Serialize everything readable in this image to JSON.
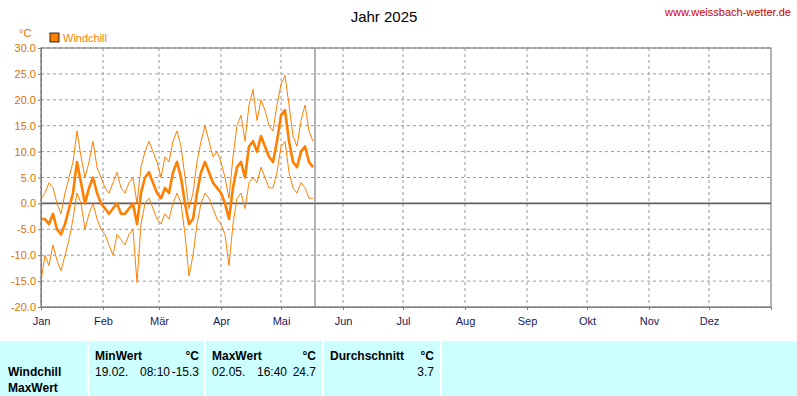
{
  "chart_data": {
    "type": "line",
    "title": "Jahr 2025",
    "source": "www.weissbach-wetter.de",
    "y_label": "°C",
    "x": [
      0,
      2,
      4,
      6,
      8,
      10,
      12,
      14,
      16,
      18,
      20,
      22,
      24,
      26,
      28,
      30,
      32,
      34,
      36,
      38,
      40,
      42,
      44,
      46,
      48,
      50,
      52,
      54,
      56,
      58,
      60,
      62,
      64,
      66,
      68,
      70,
      72,
      74,
      76,
      78,
      80,
      82,
      84,
      86,
      88,
      90,
      92,
      94,
      96,
      98,
      100,
      102,
      104,
      106,
      108,
      110,
      112,
      114,
      116,
      118,
      120,
      122,
      124,
      126,
      128,
      130,
      132,
      134,
      136
    ],
    "series": [
      {
        "name": "Windchill",
        "color": "#ff8000",
        "values": [
          -3,
          -3,
          -4,
          -2,
          -5,
          -6,
          -4,
          -1,
          2,
          8,
          4,
          0,
          3,
          5,
          2,
          0,
          -1,
          -2,
          -1,
          0,
          -2,
          -2,
          -1,
          0,
          -4,
          2,
          5,
          6,
          4,
          2,
          1,
          3,
          2,
          6,
          8,
          5,
          0,
          -4,
          -3,
          2,
          6,
          8,
          6,
          4,
          3,
          2,
          0,
          -3,
          3,
          7,
          8,
          5,
          11,
          12,
          10,
          13,
          11,
          9,
          8,
          12,
          17,
          18,
          12,
          8,
          7,
          10,
          11,
          8,
          7
        ]
      },
      {
        "color": "#ff8000",
        "values": [
          1,
          2,
          4,
          3,
          0,
          -2,
          2,
          5,
          8,
          14,
          9,
          5,
          8,
          12,
          7,
          5,
          3,
          2,
          4,
          6,
          3,
          2,
          4,
          5,
          0,
          7,
          10,
          12,
          10,
          8,
          5,
          9,
          8,
          12,
          14,
          11,
          5,
          -1,
          2,
          8,
          12,
          15,
          12,
          9,
          10,
          8,
          5,
          1,
          9,
          15,
          17,
          12,
          19,
          22,
          16,
          20,
          18,
          15,
          14,
          19,
          23,
          24.7,
          19,
          13,
          11,
          16,
          19,
          14,
          12
        ]
      },
      {
        "color": "#ff8000",
        "values": [
          -15,
          -10,
          -12,
          -8,
          -11,
          -13,
          -10,
          -7,
          -3,
          2,
          0,
          -5,
          -2,
          0,
          -3,
          -5,
          -6,
          -8,
          -10,
          -6,
          -7,
          -8,
          -6,
          -5,
          -15.3,
          -4,
          0,
          1,
          -1,
          -3,
          -4,
          -2,
          -3,
          0,
          2,
          0,
          -6,
          -14,
          -10,
          -4,
          0,
          2,
          1,
          -1,
          -3,
          -4,
          -6,
          -12,
          -4,
          1,
          2,
          -1,
          4,
          5,
          4,
          7,
          5,
          3,
          3,
          6,
          11,
          12,
          6,
          3,
          2,
          4,
          3,
          1,
          1
        ]
      }
    ],
    "xlim": [
      0,
      365
    ],
    "xticks": [
      {
        "value": 0,
        "label": "Jan"
      },
      {
        "value": 31,
        "label": "Feb"
      },
      {
        "value": 59,
        "label": "Mär"
      },
      {
        "value": 90,
        "label": "Apr"
      },
      {
        "value": 120,
        "label": "Mai"
      },
      {
        "value": 151,
        "label": "Jun"
      },
      {
        "value": 181,
        "label": "Jul"
      },
      {
        "value": 212,
        "label": "Aug"
      },
      {
        "value": 243,
        "label": "Sep"
      },
      {
        "value": 273,
        "label": "Okt"
      },
      {
        "value": 304,
        "label": "Nov"
      },
      {
        "value": 334,
        "label": "Dez"
      }
    ],
    "ylim": [
      -20,
      30
    ],
    "yticks": [
      {
        "value": -20,
        "label": "-20.0"
      },
      {
        "value": -15,
        "label": "-15.0"
      },
      {
        "value": -10,
        "label": "-10.0"
      },
      {
        "value": -5,
        "label": "-5.0"
      },
      {
        "value": 0,
        "label": "0.0"
      },
      {
        "value": 5,
        "label": "5.0"
      },
      {
        "value": 10,
        "label": "10.0"
      },
      {
        "value": 15,
        "label": "15.0"
      },
      {
        "value": 20,
        "label": "20.0"
      },
      {
        "value": 25,
        "label": "25.0"
      },
      {
        "value": 30,
        "label": "30.0"
      }
    ],
    "current_day": 137,
    "grid": true,
    "legend": "top-left"
  },
  "table": {
    "row_label": [
      "Windchill",
      "MaxWert"
    ],
    "columns": [
      {
        "header": "MinWert",
        "unit": "°C",
        "date": "19.02.",
        "time": "08:10",
        "value": -15.3
      },
      {
        "header": "MaxWert",
        "unit": "°C",
        "date": "02.05.",
        "time": "16:40",
        "value": 24.7
      },
      {
        "header": "Durchschnitt",
        "unit": "°C",
        "value": 3.7
      }
    ]
  }
}
